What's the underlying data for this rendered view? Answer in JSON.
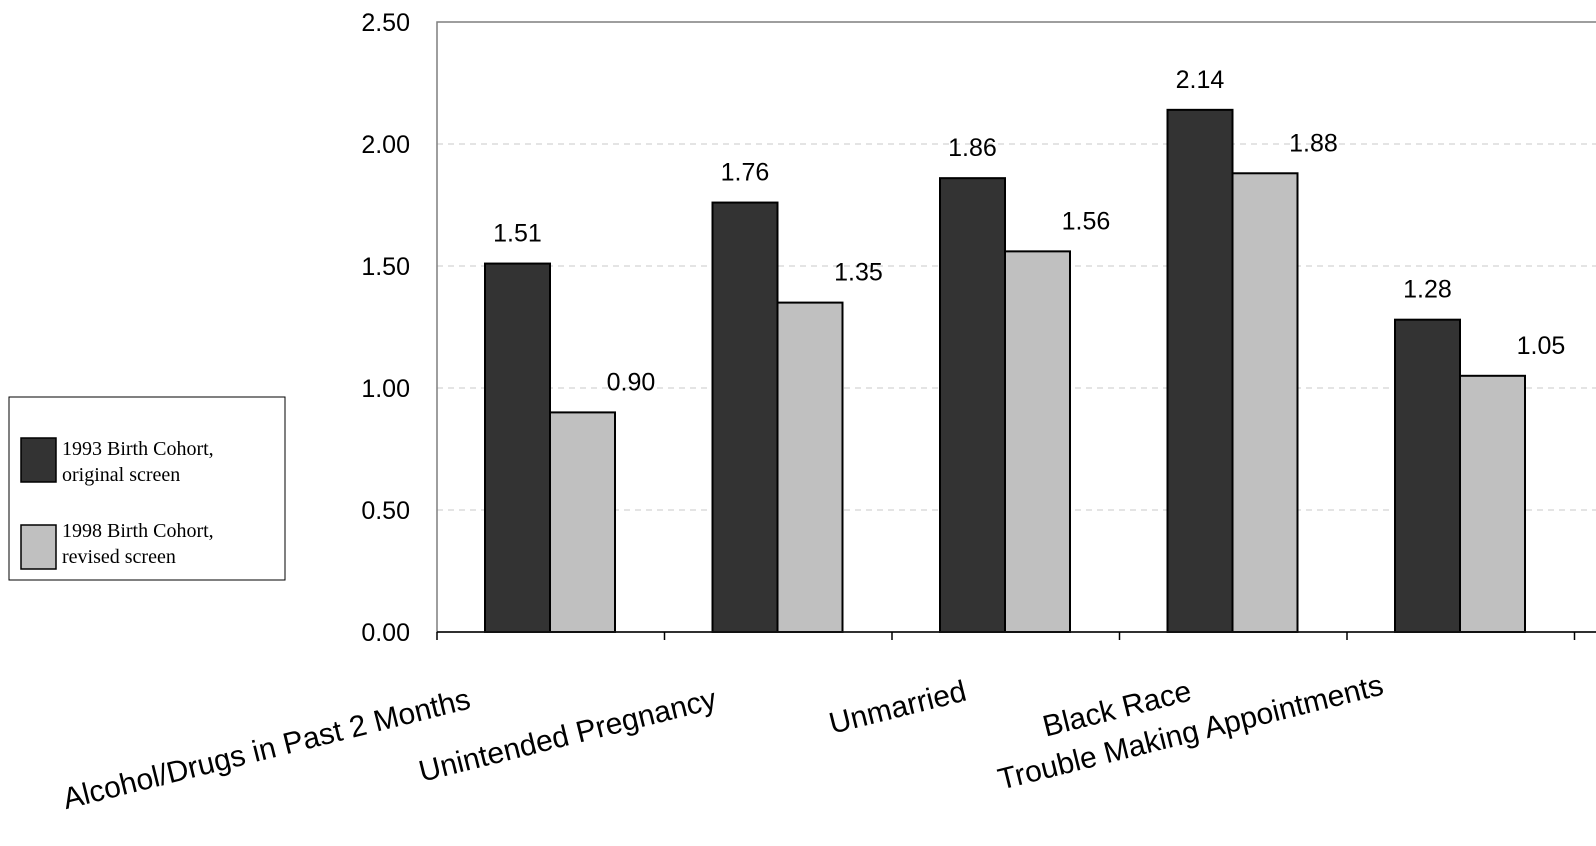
{
  "chart_data": {
    "type": "bar",
    "title": "",
    "xlabel": "",
    "ylabel": "",
    "ylim": [
      0,
      2.5
    ],
    "y_ticks": [
      "0.00",
      "0.50",
      "1.00",
      "1.50",
      "2.00",
      "2.50"
    ],
    "y_tick_values": [
      0,
      0.5,
      1.0,
      1.5,
      2.0,
      2.5
    ],
    "grid": true,
    "legend_position": "left",
    "categories": [
      "Alcohol/Drugs in Past 2 Months",
      "Unintended Pregnancy",
      "Unmarried",
      "Black Race",
      "Trouble Making Appointments"
    ],
    "series": [
      {
        "name": "1993 Birth  Cohort, original screen",
        "legend_lines": [
          "1993 Birth  Cohort,",
          "original screen"
        ],
        "color": "#333333",
        "values": [
          1.51,
          1.76,
          1.86,
          2.14,
          1.28
        ],
        "labels": [
          "1.51",
          "1.76",
          "1.86",
          "2.14",
          "1.28"
        ]
      },
      {
        "name": "1998 Birth Cohort, revised screen",
        "legend_lines": [
          "1998 Birth Cohort,",
          "revised screen"
        ],
        "color": "#c0c0c0",
        "values": [
          0.9,
          1.35,
          1.56,
          1.88,
          1.05
        ],
        "labels": [
          "0.90",
          "1.35",
          "1.56",
          "1.88",
          "1.05"
        ]
      }
    ]
  }
}
